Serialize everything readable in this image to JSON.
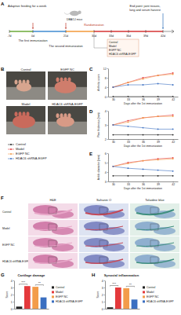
{
  "chart_data": [
    {
      "type": "line",
      "x_label": "Days after the 1st immunization",
      "y_label": "Arthritis score",
      "x": [
        30,
        33,
        36,
        39,
        42
      ],
      "xlim": [
        29,
        43
      ],
      "xticks": [
        30,
        33,
        36,
        39,
        42
      ],
      "ylim": [
        0,
        12
      ],
      "yticks": [
        0,
        4,
        8,
        12
      ],
      "marker": "circle",
      "legend": "left",
      "series": [
        {
          "name": "Control",
          "color": "#222222",
          "values": [
            0,
            0,
            0,
            0,
            0
          ]
        },
        {
          "name": "Model",
          "color": "#e4393c",
          "values": [
            4,
            6,
            8,
            9,
            10
          ]
        },
        {
          "name": "EGFP NC",
          "color": "#f39c4a",
          "values": [
            4,
            6,
            7.5,
            9,
            9.5
          ]
        },
        {
          "name": "HDAC6 shRNA-EGFP",
          "color": "#3b6fc1",
          "values": [
            4,
            5,
            5,
            5.5,
            5
          ]
        }
      ]
    },
    {
      "type": "line",
      "x_label": "Days after the 1st immunization",
      "y_label": "Paw thickness (mm)",
      "x": [
        30,
        33,
        36,
        39,
        42
      ],
      "xlim": [
        29,
        43
      ],
      "xticks": [
        30,
        33,
        36,
        39,
        42
      ],
      "ylim": [
        2,
        4
      ],
      "yticks": [
        2,
        3,
        4
      ],
      "marker": "circle",
      "series": [
        {
          "color": "#222222",
          "values": [
            2.3,
            2.3,
            2.3,
            2.3,
            2.3
          ]
        },
        {
          "color": "#e4393c",
          "values": [
            3.0,
            3.3,
            3.5,
            3.6,
            3.7
          ]
        },
        {
          "color": "#f39c4a",
          "values": [
            3.0,
            3.2,
            3.5,
            3.6,
            3.6
          ]
        },
        {
          "color": "#3b6fc1",
          "values": [
            3.0,
            2.9,
            2.8,
            2.7,
            2.7
          ]
        }
      ]
    },
    {
      "type": "line",
      "x_label": "Days after the 1st immunization",
      "y_label": "Ankle diameter (mm)",
      "x": [
        30,
        33,
        36,
        39,
        42
      ],
      "xlim": [
        29,
        43
      ],
      "xticks": [
        30,
        33,
        36,
        39,
        42
      ],
      "ylim": [
        3,
        6
      ],
      "yticks": [
        3,
        4,
        5,
        6
      ],
      "marker": "circle",
      "series": [
        {
          "color": "#222222",
          "values": [
            3.6,
            3.6,
            3.6,
            3.6,
            3.6
          ]
        },
        {
          "color": "#e4393c",
          "values": [
            4.6,
            5.0,
            5.2,
            5.4,
            5.5
          ]
        },
        {
          "color": "#f39c4a",
          "values": [
            4.6,
            4.9,
            5.2,
            5.3,
            5.4
          ]
        },
        {
          "color": "#3b6fc1",
          "values": [
            4.6,
            4.4,
            4.3,
            4.2,
            4.1
          ]
        }
      ]
    },
    {
      "type": "bar",
      "title": "Cartilage damage",
      "y_label": "Score",
      "categories": [
        "Control",
        "Model",
        "EGFP NC",
        "HDAC6 shRNA-EGFP"
      ],
      "values": [
        0.3,
        3.2,
        3.1,
        1.6
      ],
      "colors": [
        "#222222",
        "#e4393c",
        "#f39c4a",
        "#3b6fc1"
      ],
      "ylim": [
        0,
        4
      ],
      "yticks": [
        0,
        1,
        2,
        3,
        4
      ],
      "tick_labels": "y",
      "legend": "right",
      "annotations": [
        {
          "text": "***",
          "from": "Control",
          "to": "Model"
        },
        {
          "text": "**",
          "from": "EGFP NC",
          "to": "HDAC6 shRNA-EGFP"
        }
      ]
    },
    {
      "type": "bar",
      "title": "Synovial inflammation",
      "y_label": "Score",
      "categories": [
        "Control",
        "Model",
        "EGFP NC",
        "HDAC6 shRNA-EGFP"
      ],
      "values": [
        0.2,
        3.0,
        2.9,
        1.3
      ],
      "colors": [
        "#222222",
        "#e4393c",
        "#f39c4a",
        "#3b6fc1"
      ],
      "ylim": [
        0,
        4
      ],
      "yticks": [
        0,
        1,
        2,
        3,
        4
      ],
      "tick_labels": "y",
      "legend": "right",
      "annotations": [
        {
          "text": "***",
          "from": "Control",
          "to": "Model"
        },
        {
          "text": "**",
          "from": "EGFP NC",
          "to": "HDAC6 shRNA-EGFP"
        }
      ]
    }
  ],
  "figure": {
    "panel_labels": [
      "A",
      "B",
      "C",
      "D",
      "E",
      "F",
      "G",
      "H"
    ],
    "timeline": {
      "adaptive": "Adaptive feeding for a week",
      "mice": "DBA/1J mice",
      "days": [
        "-7d",
        "0d",
        "21d",
        "30d",
        "33d",
        "36d",
        "39d",
        "42d"
      ],
      "first": "The first immunization",
      "second": "The second immunization",
      "randomization": "Randomization",
      "groups": [
        "Control",
        "Model",
        "EGFP NC",
        "HDAC6 shRNA-EGFP"
      ],
      "end_point": [
        "End point: joint tissues,",
        "lung and serum harvest"
      ]
    },
    "photos": [
      "Control",
      "EGFP NC",
      "Model",
      "HDAC6 shRNA-EGFP"
    ],
    "histology": {
      "columns": [
        "H&E",
        "Safranin O",
        "Toluidine blue"
      ],
      "rows": [
        "Control",
        "Model",
        "EGFP NC",
        "HDAC6 shRNA-EGFP"
      ]
    }
  }
}
